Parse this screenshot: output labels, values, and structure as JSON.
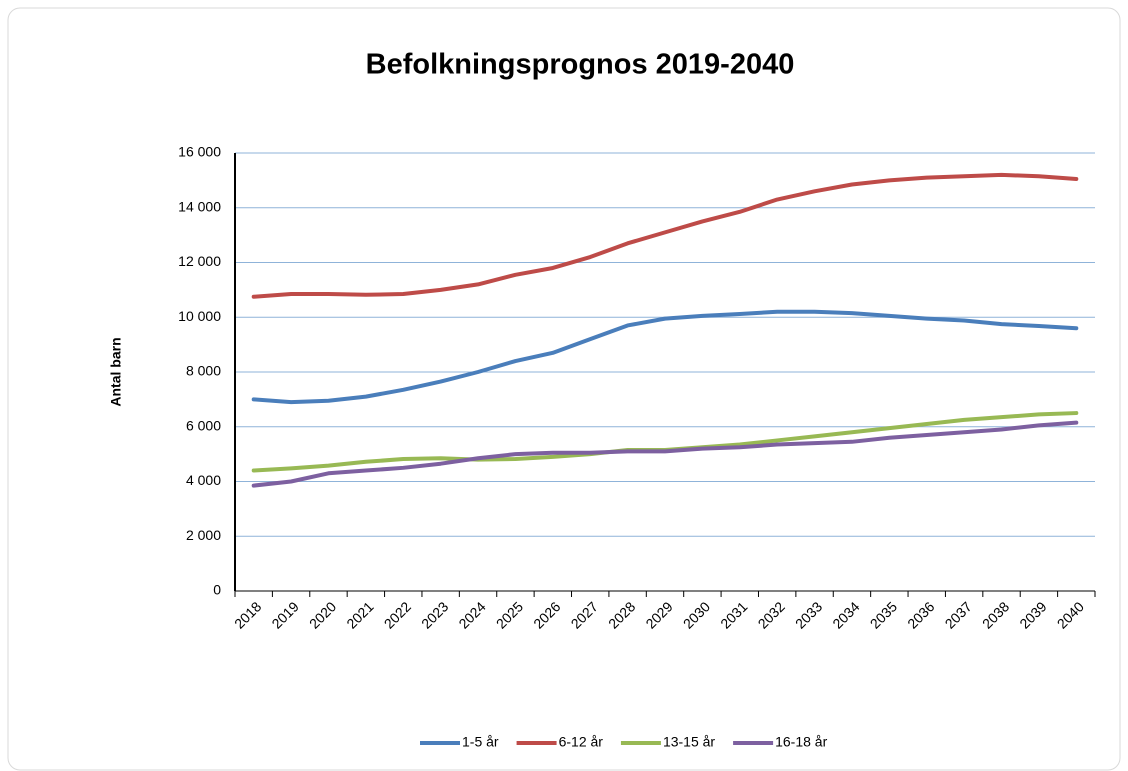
{
  "chart_data": {
    "type": "line",
    "title": "Befolkningsprognos 2019-2040",
    "y_label": "Antal barn",
    "categories": [
      "2018",
      "2019",
      "2020",
      "2021",
      "2022",
      "2023",
      "2024",
      "2025",
      "2026",
      "2027",
      "2028",
      "2029",
      "2030",
      "2031",
      "2032",
      "2033",
      "2034",
      "2035",
      "2036",
      "2037",
      "2038",
      "2039",
      "2040"
    ],
    "series": [
      {
        "name": "1-5 år",
        "color": "#4a7ebb",
        "values": [
          7000,
          6900,
          6950,
          7100,
          7350,
          7650,
          8000,
          8400,
          8700,
          9200,
          9700,
          9950,
          10050,
          10120,
          10200,
          10200,
          10150,
          10050,
          9950,
          9880,
          9750,
          9680,
          9600
        ]
      },
      {
        "name": "6-12 år",
        "color": "#be4b48",
        "values": [
          10750,
          10850,
          10850,
          10820,
          10850,
          11000,
          11200,
          11550,
          11800,
          12200,
          12700,
          13100,
          13500,
          13850,
          14300,
          14600,
          14850,
          15000,
          15100,
          15150,
          15200,
          15150,
          15050
        ]
      },
      {
        "name": "13-15 år",
        "color": "#98b954",
        "values": [
          4400,
          4480,
          4580,
          4720,
          4820,
          4850,
          4800,
          4820,
          4900,
          5000,
          5150,
          5150,
          5250,
          5350,
          5500,
          5650,
          5800,
          5950,
          6100,
          6250,
          6350,
          6450,
          6500
        ]
      },
      {
        "name": "16-18 år",
        "color": "#7d60a0",
        "values": [
          3850,
          4000,
          4300,
          4400,
          4500,
          4650,
          4850,
          5000,
          5050,
          5050,
          5100,
          5100,
          5200,
          5250,
          5350,
          5400,
          5450,
          5600,
          5700,
          5800,
          5900,
          6050,
          6150
        ]
      }
    ],
    "ylim": [
      0,
      16000
    ],
    "yticks": [
      0,
      {
        "value": 2000,
        "label": "2 000"
      },
      {
        "value": 4000,
        "label": "4 000"
      },
      {
        "value": 6000,
        "label": "6 000"
      },
      {
        "value": 8000,
        "label": "8 000"
      },
      {
        "value": 10000,
        "label": "10 000"
      },
      {
        "value": 12000,
        "label": "12 000"
      },
      {
        "value": 14000,
        "label": "14 000"
      },
      {
        "value": 16000,
        "label": "16 000"
      }
    ],
    "grid": true,
    "legend": "bottom"
  }
}
